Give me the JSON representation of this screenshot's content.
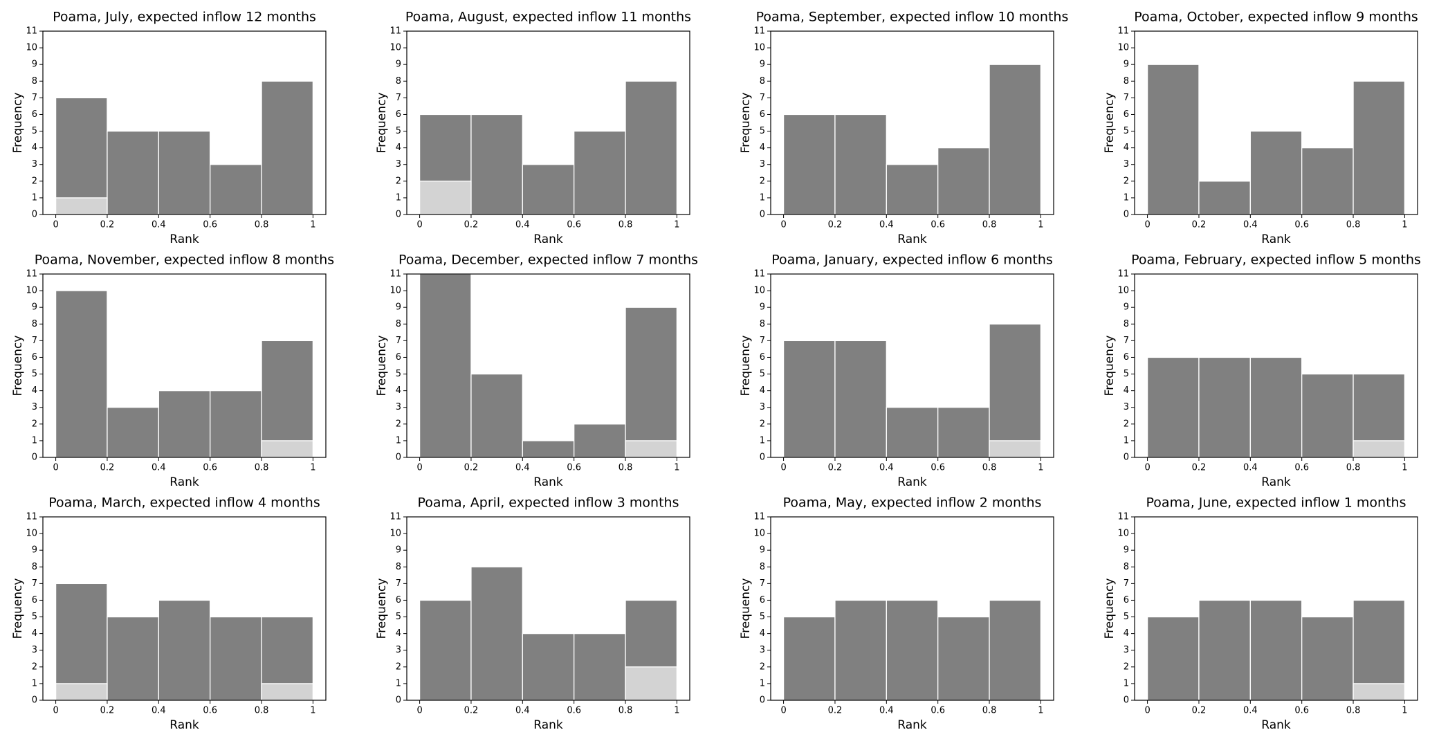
{
  "chart_data": [
    {
      "type": "histogram",
      "title": "Poama, July, expected inflow 12 months",
      "xlabel": "Rank",
      "ylabel": "Frequency",
      "bins": [
        0,
        0.2,
        0.4,
        0.6,
        0.8,
        1
      ],
      "series": [
        {
          "color": "#808080",
          "values": [
            7,
            5,
            5,
            3,
            8
          ]
        },
        {
          "color": "#d3d3d3",
          "values": [
            1,
            0,
            0,
            0,
            0
          ]
        }
      ],
      "xlim": [
        -0.05,
        1.05
      ],
      "ylim": [
        0,
        11
      ],
      "xticks": [
        0,
        0.2,
        0.4,
        0.6,
        0.8,
        1
      ],
      "yticks": [
        0,
        1,
        2,
        3,
        4,
        5,
        6,
        7,
        8,
        9,
        10,
        11
      ]
    },
    {
      "type": "histogram",
      "title": "Poama, August, expected inflow 11 months",
      "xlabel": "Rank",
      "ylabel": "Frequency",
      "bins": [
        0,
        0.2,
        0.4,
        0.6,
        0.8,
        1
      ],
      "series": [
        {
          "color": "#808080",
          "values": [
            6,
            6,
            3,
            5,
            8
          ]
        },
        {
          "color": "#d3d3d3",
          "values": [
            2,
            0,
            0,
            0,
            0
          ]
        }
      ],
      "xlim": [
        -0.05,
        1.05
      ],
      "ylim": [
        0,
        11
      ],
      "xticks": [
        0,
        0.2,
        0.4,
        0.6,
        0.8,
        1
      ],
      "yticks": [
        0,
        1,
        2,
        3,
        4,
        5,
        6,
        7,
        8,
        9,
        10,
        11
      ]
    },
    {
      "type": "histogram",
      "title": "Poama, September, expected inflow 10 months",
      "xlabel": "Rank",
      "ylabel": "Frequency",
      "bins": [
        0,
        0.2,
        0.4,
        0.6,
        0.8,
        1
      ],
      "series": [
        {
          "color": "#808080",
          "values": [
            6,
            6,
            3,
            4,
            9
          ]
        },
        {
          "color": "#d3d3d3",
          "values": [
            0,
            0,
            0,
            0,
            0
          ]
        }
      ],
      "xlim": [
        -0.05,
        1.05
      ],
      "ylim": [
        0,
        11
      ],
      "xticks": [
        0,
        0.2,
        0.4,
        0.6,
        0.8,
        1
      ],
      "yticks": [
        0,
        1,
        2,
        3,
        4,
        5,
        6,
        7,
        8,
        9,
        10,
        11
      ]
    },
    {
      "type": "histogram",
      "title": "Poama, October, expected inflow 9 months",
      "xlabel": "Rank",
      "ylabel": "Frequency",
      "bins": [
        0,
        0.2,
        0.4,
        0.6,
        0.8,
        1
      ],
      "series": [
        {
          "color": "#808080",
          "values": [
            9,
            2,
            5,
            4,
            8
          ]
        },
        {
          "color": "#d3d3d3",
          "values": [
            0,
            0,
            0,
            0,
            0
          ]
        }
      ],
      "xlim": [
        -0.05,
        1.05
      ],
      "ylim": [
        0,
        11
      ],
      "xticks": [
        0,
        0.2,
        0.4,
        0.6,
        0.8,
        1
      ],
      "yticks": [
        0,
        1,
        2,
        3,
        4,
        5,
        6,
        7,
        8,
        9,
        10,
        11
      ]
    },
    {
      "type": "histogram",
      "title": "Poama, November, expected inflow 8 months",
      "xlabel": "Rank",
      "ylabel": "Frequency",
      "bins": [
        0,
        0.2,
        0.4,
        0.6,
        0.8,
        1
      ],
      "series": [
        {
          "color": "#808080",
          "values": [
            10,
            3,
            4,
            4,
            7
          ]
        },
        {
          "color": "#d3d3d3",
          "values": [
            0,
            0,
            0,
            0,
            1
          ]
        }
      ],
      "xlim": [
        -0.05,
        1.05
      ],
      "ylim": [
        0,
        11
      ],
      "xticks": [
        0,
        0.2,
        0.4,
        0.6,
        0.8,
        1
      ],
      "yticks": [
        0,
        1,
        2,
        3,
        4,
        5,
        6,
        7,
        8,
        9,
        10,
        11
      ]
    },
    {
      "type": "histogram",
      "title": "Poama, December, expected inflow 7 months",
      "xlabel": "Rank",
      "ylabel": "Frequency",
      "bins": [
        0,
        0.2,
        0.4,
        0.6,
        0.8,
        1
      ],
      "series": [
        {
          "color": "#808080",
          "values": [
            11,
            5,
            1,
            2,
            9
          ]
        },
        {
          "color": "#d3d3d3",
          "values": [
            0,
            0,
            0,
            0,
            1
          ]
        }
      ],
      "xlim": [
        -0.05,
        1.05
      ],
      "ylim": [
        0,
        11
      ],
      "xticks": [
        0,
        0.2,
        0.4,
        0.6,
        0.8,
        1
      ],
      "yticks": [
        0,
        1,
        2,
        3,
        4,
        5,
        6,
        7,
        8,
        9,
        10,
        11
      ]
    },
    {
      "type": "histogram",
      "title": "Poama, January, expected inflow 6 months",
      "xlabel": "Rank",
      "ylabel": "Frequency",
      "bins": [
        0,
        0.2,
        0.4,
        0.6,
        0.8,
        1
      ],
      "series": [
        {
          "color": "#808080",
          "values": [
            7,
            7,
            3,
            3,
            8
          ]
        },
        {
          "color": "#d3d3d3",
          "values": [
            0,
            0,
            0,
            0,
            1
          ]
        }
      ],
      "xlim": [
        -0.05,
        1.05
      ],
      "ylim": [
        0,
        11
      ],
      "xticks": [
        0,
        0.2,
        0.4,
        0.6,
        0.8,
        1
      ],
      "yticks": [
        0,
        1,
        2,
        3,
        4,
        5,
        6,
        7,
        8,
        9,
        10,
        11
      ]
    },
    {
      "type": "histogram",
      "title": "Poama, February, expected inflow 5 months",
      "xlabel": "Rank",
      "ylabel": "Frequency",
      "bins": [
        0,
        0.2,
        0.4,
        0.6,
        0.8,
        1
      ],
      "series": [
        {
          "color": "#808080",
          "values": [
            6,
            6,
            6,
            5,
            5
          ]
        },
        {
          "color": "#d3d3d3",
          "values": [
            0,
            0,
            0,
            0,
            1
          ]
        }
      ],
      "xlim": [
        -0.05,
        1.05
      ],
      "ylim": [
        0,
        11
      ],
      "xticks": [
        0,
        0.2,
        0.4,
        0.6,
        0.8,
        1
      ],
      "yticks": [
        0,
        1,
        2,
        3,
        4,
        5,
        6,
        7,
        8,
        9,
        10,
        11
      ]
    },
    {
      "type": "histogram",
      "title": "Poama, March, expected inflow 4 months",
      "xlabel": "Rank",
      "ylabel": "Frequency",
      "bins": [
        0,
        0.2,
        0.4,
        0.6,
        0.8,
        1
      ],
      "series": [
        {
          "color": "#808080",
          "values": [
            7,
            5,
            6,
            5,
            5
          ]
        },
        {
          "color": "#d3d3d3",
          "values": [
            1,
            0,
            0,
            0,
            1
          ]
        }
      ],
      "xlim": [
        -0.05,
        1.05
      ],
      "ylim": [
        0,
        11
      ],
      "xticks": [
        0,
        0.2,
        0.4,
        0.6,
        0.8,
        1
      ],
      "yticks": [
        0,
        1,
        2,
        3,
        4,
        5,
        6,
        7,
        8,
        9,
        10,
        11
      ]
    },
    {
      "type": "histogram",
      "title": "Poama, April, expected inflow 3 months",
      "xlabel": "Rank",
      "ylabel": "Frequency",
      "bins": [
        0,
        0.2,
        0.4,
        0.6,
        0.8,
        1
      ],
      "series": [
        {
          "color": "#808080",
          "values": [
            6,
            8,
            4,
            4,
            6
          ]
        },
        {
          "color": "#d3d3d3",
          "values": [
            0,
            0,
            0,
            0,
            2
          ]
        }
      ],
      "xlim": [
        -0.05,
        1.05
      ],
      "ylim": [
        0,
        11
      ],
      "xticks": [
        0,
        0.2,
        0.4,
        0.6,
        0.8,
        1
      ],
      "yticks": [
        0,
        1,
        2,
        3,
        4,
        5,
        6,
        7,
        8,
        9,
        10,
        11
      ]
    },
    {
      "type": "histogram",
      "title": "Poama, May, expected inflow 2 months",
      "xlabel": "Rank",
      "ylabel": "Frequency",
      "bins": [
        0,
        0.2,
        0.4,
        0.6,
        0.8,
        1
      ],
      "series": [
        {
          "color": "#808080",
          "values": [
            5,
            6,
            6,
            5,
            6
          ]
        },
        {
          "color": "#d3d3d3",
          "values": [
            0,
            0,
            0,
            0,
            0
          ]
        }
      ],
      "xlim": [
        -0.05,
        1.05
      ],
      "ylim": [
        0,
        11
      ],
      "xticks": [
        0,
        0.2,
        0.4,
        0.6,
        0.8,
        1
      ],
      "yticks": [
        0,
        1,
        2,
        3,
        4,
        5,
        6,
        7,
        8,
        9,
        10,
        11
      ]
    },
    {
      "type": "histogram",
      "title": "Poama, June, expected inflow 1 months",
      "xlabel": "Rank",
      "ylabel": "Frequency",
      "bins": [
        0,
        0.2,
        0.4,
        0.6,
        0.8,
        1
      ],
      "series": [
        {
          "color": "#808080",
          "values": [
            5,
            6,
            6,
            5,
            6
          ]
        },
        {
          "color": "#d3d3d3",
          "values": [
            0,
            0,
            0,
            0,
            1
          ]
        }
      ],
      "xlim": [
        -0.05,
        1.05
      ],
      "ylim": [
        0,
        11
      ],
      "xticks": [
        0,
        0.2,
        0.4,
        0.6,
        0.8,
        1
      ],
      "yticks": [
        0,
        1,
        2,
        3,
        4,
        5,
        6,
        7,
        8,
        9,
        10,
        11
      ]
    }
  ]
}
